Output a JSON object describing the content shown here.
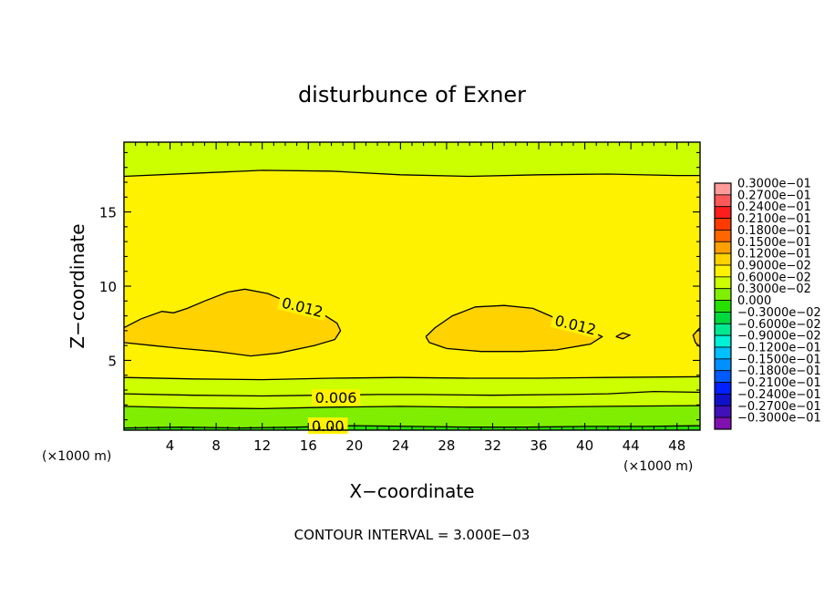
{
  "chart_data": {
    "type": "contour",
    "title": "disturbunce of Exner",
    "xlabel": "X−coordinate",
    "ylabel": "Z−coordinate",
    "x_unit": "(×1000 m)",
    "y_unit": "(×1000 m)",
    "xlim": [
      0,
      50
    ],
    "ylim": [
      0.3,
      19.7
    ],
    "x_ticks": [
      4,
      8,
      12,
      16,
      20,
      24,
      28,
      32,
      36,
      40,
      44,
      48
    ],
    "y_ticks": [
      5,
      10,
      15
    ],
    "footer": "CONTOUR INTERVAL = 3.000E−03",
    "contour_interval": 0.003,
    "contour_labels": [
      {
        "text": "0.012",
        "x": 15.5,
        "z": 8.6
      },
      {
        "text": "0.012",
        "x": 39.2,
        "z": 7.4
      },
      {
        "text": "0.006",
        "x": 18.4,
        "z": 2.5
      },
      {
        "text": "0.00",
        "x": 17.7,
        "z": 0.6
      }
    ],
    "contour_lines": [
      {
        "level": 0.0,
        "points": [
          [
            0,
            0.45
          ],
          [
            5,
            0.5
          ],
          [
            10,
            0.45
          ],
          [
            15,
            0.5
          ],
          [
            20,
            0.6
          ],
          [
            25,
            0.55
          ],
          [
            30,
            0.5
          ],
          [
            35,
            0.5
          ],
          [
            40,
            0.55
          ],
          [
            45,
            0.55
          ],
          [
            50,
            0.6
          ]
        ]
      },
      {
        "level": 0.003,
        "points": [
          [
            0,
            1.9
          ],
          [
            6,
            1.8
          ],
          [
            12,
            1.75
          ],
          [
            18,
            1.85
          ],
          [
            24,
            1.9
          ],
          [
            30,
            1.85
          ],
          [
            36,
            1.85
          ],
          [
            42,
            1.9
          ],
          [
            50,
            1.95
          ]
        ]
      },
      {
        "level": 0.006,
        "points": [
          [
            0,
            2.75
          ],
          [
            6,
            2.65
          ],
          [
            12,
            2.6
          ],
          [
            17,
            2.65
          ],
          [
            22,
            2.7
          ],
          [
            26,
            2.7
          ],
          [
            32,
            2.65
          ],
          [
            38,
            2.7
          ],
          [
            42,
            2.75
          ],
          [
            46,
            2.9
          ],
          [
            50,
            2.85
          ]
        ]
      },
      {
        "level": 0.009,
        "points": [
          [
            0,
            3.85
          ],
          [
            6,
            3.75
          ],
          [
            12,
            3.7
          ],
          [
            18,
            3.8
          ],
          [
            24,
            3.85
          ],
          [
            30,
            3.8
          ],
          [
            36,
            3.8
          ],
          [
            42,
            3.85
          ],
          [
            50,
            3.9
          ]
        ]
      },
      {
        "level": 0.012,
        "points": [
          [
            0,
            7.2
          ],
          [
            1.5,
            7.8
          ],
          [
            3.3,
            8.3
          ],
          [
            4.3,
            8.2
          ],
          [
            5.5,
            8.5
          ],
          [
            7,
            9.0
          ],
          [
            9,
            9.6
          ],
          [
            10.5,
            9.8
          ],
          [
            12.5,
            9.5
          ],
          [
            14,
            9.0
          ],
          [
            15.5,
            8.6
          ],
          [
            17.5,
            8.0
          ],
          [
            18.5,
            7.5
          ],
          [
            18.8,
            7.0
          ],
          [
            18.3,
            6.4
          ],
          [
            16.5,
            6.0
          ],
          [
            13.5,
            5.5
          ],
          [
            11,
            5.3
          ],
          [
            8,
            5.6
          ],
          [
            5,
            5.8
          ],
          [
            2.5,
            6.0
          ],
          [
            0,
            6.2
          ]
        ]
      },
      {
        "level": 0.012,
        "points": [
          [
            26.2,
            6.6
          ],
          [
            27,
            7.2
          ],
          [
            28.5,
            8.0
          ],
          [
            30.5,
            8.6
          ],
          [
            33,
            8.7
          ],
          [
            35.5,
            8.5
          ],
          [
            37,
            8.0
          ],
          [
            38.5,
            7.4
          ],
          [
            40.5,
            7.0
          ],
          [
            41.5,
            6.6
          ],
          [
            40.5,
            6.1
          ],
          [
            37.5,
            5.7
          ],
          [
            34.5,
            5.6
          ],
          [
            31,
            5.6
          ],
          [
            28,
            5.8
          ],
          [
            26.5,
            6.2
          ],
          [
            26.2,
            6.6
          ]
        ]
      },
      {
        "level": 0.012,
        "points": [
          [
            42.7,
            6.6
          ],
          [
            43.3,
            6.85
          ],
          [
            43.9,
            6.7
          ],
          [
            43.3,
            6.45
          ],
          [
            42.7,
            6.6
          ]
        ]
      },
      {
        "level": 0.012,
        "points": [
          [
            50,
            7.2
          ],
          [
            49.4,
            6.7
          ],
          [
            49.6,
            6.2
          ],
          [
            50,
            5.9
          ]
        ]
      },
      {
        "level": 0.015,
        "points": [
          [
            0,
            17.4
          ],
          [
            6,
            17.6
          ],
          [
            12,
            17.8
          ],
          [
            18,
            17.75
          ],
          [
            24,
            17.5
          ],
          [
            30,
            17.4
          ],
          [
            36,
            17.5
          ],
          [
            42,
            17.55
          ],
          [
            48,
            17.45
          ],
          [
            50,
            17.45
          ]
        ]
      }
    ],
    "colorbar": {
      "labels": [
        "0.3000e−01",
        "0.2700e−01",
        "0.2400e−01",
        "0.2100e−01",
        "0.1800e−01",
        "0.1500e−01",
        "0.1200e−01",
        "0.9000e−02",
        "0.6000e−02",
        "0.3000e−02",
        "0.000",
        "−0.3000e−02",
        "−0.6000e−02",
        "−0.9000e−02",
        "−0.1200e−01",
        "−0.1500e−01",
        "−0.1800e−01",
        "−0.2100e−01",
        "−0.2400e−01",
        "−0.2700e−01",
        "−0.3000e−01"
      ],
      "colors": [
        "#ff9a9a",
        "#ff5858",
        "#ff1c1c",
        "#ff3a00",
        "#ff6600",
        "#ffa000",
        "#ffd200",
        "#fff200",
        "#ccff00",
        "#80ee00",
        "#26e000",
        "#00d83c",
        "#00e890",
        "#00f0d8",
        "#00c0ff",
        "#0090ff",
        "#0058ff",
        "#0020ff",
        "#1010c8",
        "#4010b8",
        "#8010b0"
      ]
    },
    "colors": {
      "upper": "#ccff00",
      "middle": "#fff200",
      "core": "#ffd200",
      "lower_1": "#ccff00",
      "lower_2": "#80ee00",
      "lower_3": "#26e000"
    }
  }
}
